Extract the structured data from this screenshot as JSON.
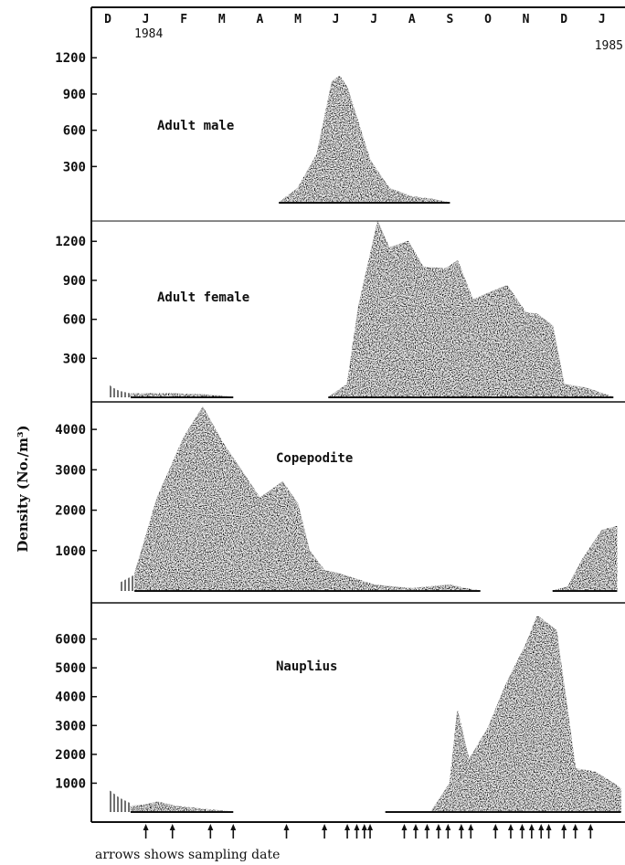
{
  "chart_data": {
    "type": "area",
    "months": [
      "D",
      "J",
      "F",
      "M",
      "A",
      "M",
      "J",
      "J",
      "A",
      "S",
      "O",
      "N",
      "D",
      "J"
    ],
    "years": {
      "start": "1984",
      "end": "1985"
    },
    "ylabel": "Density (No./m³)",
    "caption": "arrows shows sampling date",
    "arrow_dates_month_index": [
      1.0,
      1.7,
      2.7,
      3.3,
      4.7,
      5.7,
      6.3,
      6.55,
      6.75,
      6.9,
      7.8,
      8.1,
      8.4,
      8.7,
      8.95,
      9.3,
      9.55,
      10.2,
      10.6,
      10.9,
      11.15,
      11.4,
      11.6,
      12.0,
      12.3,
      12.7
    ],
    "panels": [
      {
        "name": "Adult male",
        "yticks": [
          300,
          600,
          900,
          1200
        ],
        "ylim": [
          0,
          1300
        ],
        "series": [
          {
            "x": [
              4.5,
              5.0,
              5.5,
              5.9,
              6.1,
              6.3,
              6.9,
              7.4,
              8.0,
              8.5,
              9.0
            ],
            "y": [
              0,
              120,
              400,
              1000,
              1050,
              950,
              350,
              120,
              50,
              30,
              0
            ]
          }
        ]
      },
      {
        "name": "Adult female",
        "yticks": [
          300,
          600,
          900,
          1200
        ],
        "ylim": [
          0,
          1300
        ],
        "hatched": [
          {
            "x": [
              0.0,
              0.1,
              0.3,
              0.6
            ],
            "y": [
              110,
              80,
              50,
              30
            ]
          }
        ],
        "series": [
          {
            "x": [
              0.6,
              1.0,
              1.5,
              2.0,
              2.5,
              3.0,
              3.3
            ],
            "y": [
              30,
              30,
              30,
              25,
              20,
              10,
              0
            ]
          },
          {
            "x": [
              5.8,
              6.3,
              6.6,
              7.1,
              7.4,
              7.9,
              8.3,
              8.9,
              9.2,
              9.6,
              10.0,
              10.5,
              11.0,
              11.3,
              11.7,
              12.0,
              12.6,
              13.3
            ],
            "y": [
              0,
              100,
              700,
              1350,
              1150,
              1200,
              1000,
              990,
              1050,
              750,
              800,
              860,
              650,
              640,
              550,
              100,
              70,
              0
            ]
          }
        ]
      },
      {
        "name": "Copepodite",
        "yticks": [
          1000,
          2000,
          3000,
          4000
        ],
        "ylim": [
          0,
          4500
        ],
        "hatched": [
          {
            "x": [
              0.3,
              0.5,
              0.7
            ],
            "y": [
              200,
              300,
              400
            ]
          }
        ],
        "series": [
          {
            "x": [
              0.7,
              1.3,
              2.0,
              2.5,
              3.0,
              4.0,
              4.6,
              5.0,
              5.3,
              5.7,
              6.0,
              6.5,
              7.0,
              7.5,
              8.0,
              9.0,
              9.3,
              9.8
            ],
            "y": [
              400,
              2300,
              3800,
              4550,
              3700,
              2300,
              2700,
              2150,
              1000,
              500,
              450,
              300,
              150,
              100,
              60,
              150,
              80,
              0
            ]
          },
          {
            "x": [
              11.7,
              12.1,
              12.5,
              13.0,
              13.4
            ],
            "y": [
              0,
              100,
              800,
              1500,
              1600
            ]
          }
        ]
      },
      {
        "name": "Nauplius",
        "yticks": [
          1000,
          2000,
          3000,
          4000,
          5000,
          6000
        ],
        "ylim": [
          0,
          7000
        ],
        "hatched": [
          {
            "x": [
              0.0,
              0.3,
              0.6
            ],
            "y": [
              800,
              500,
              300
            ]
          }
        ],
        "series": [
          {
            "x": [
              0.6,
              1.0,
              1.3,
              1.8,
              2.5,
              3.3
            ],
            "y": [
              200,
              250,
              350,
              200,
              100,
              0
            ]
          },
          {
            "x": [
              7.3,
              8.0,
              8.5,
              9.0,
              9.2,
              9.5,
              10.0,
              10.5,
              11.0,
              11.3,
              11.8,
              12.3,
              12.8,
              13.3,
              13.5
            ],
            "y": [
              0,
              0,
              0,
              1000,
              3500,
              1800,
              2900,
              4500,
              5800,
              6800,
              6300,
              1500,
              1400,
              1000,
              800
            ]
          }
        ]
      }
    ]
  }
}
